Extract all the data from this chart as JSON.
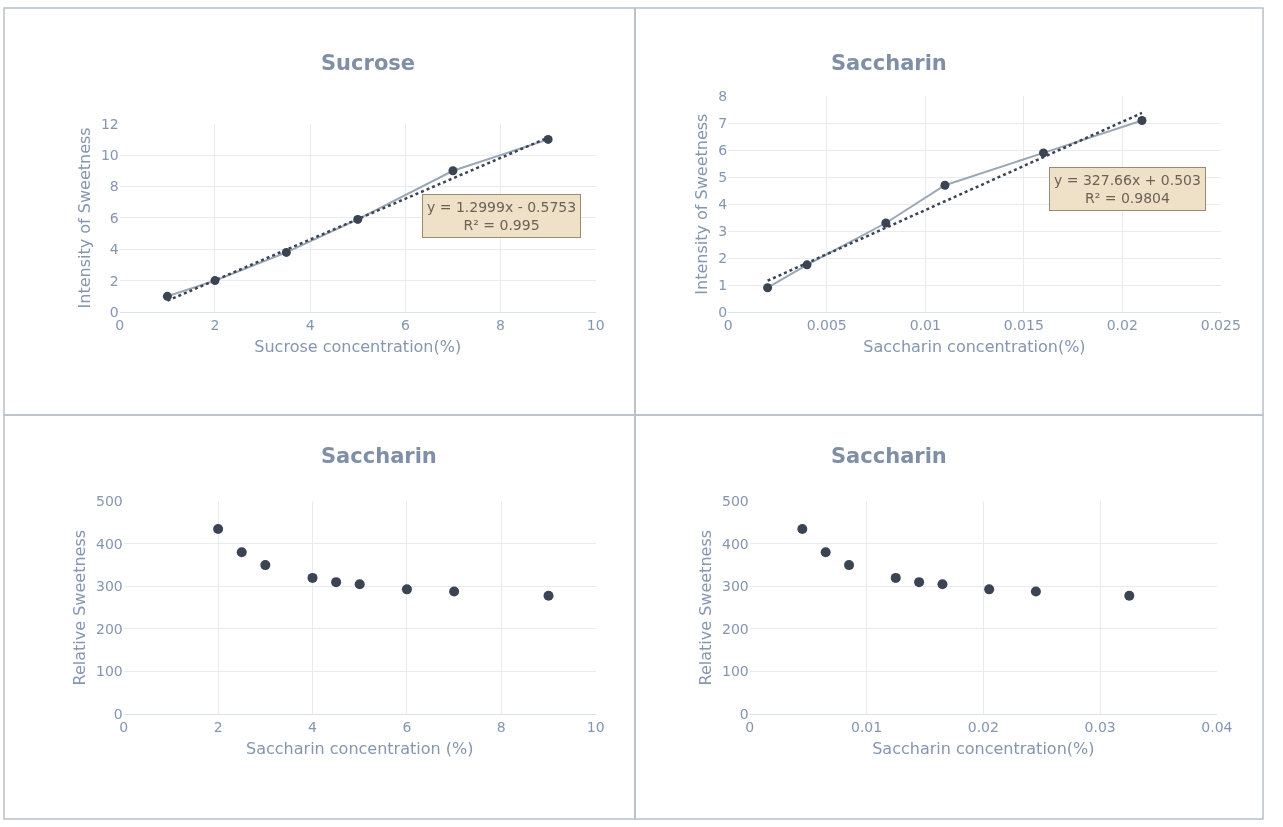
{
  "chart_data": [
    {
      "type": "line",
      "title": "Sucrose",
      "xlabel": "Sucrose concentration(%)",
      "ylabel": "Intensity of Sweetness",
      "xlim": [
        0,
        10
      ],
      "xticks": [
        0,
        2,
        4,
        6,
        8,
        10
      ],
      "ylim": [
        0,
        12
      ],
      "yticks": [
        0,
        2,
        4,
        6,
        8,
        10,
        12
      ],
      "grid": true,
      "series": [
        {
          "type": "line",
          "marker": "circle",
          "line_style": "solid",
          "color": "#9aa8b6",
          "x": [
            1,
            2,
            3.5,
            5,
            7,
            9
          ],
          "values": [
            1,
            2,
            3.8,
            5.9,
            9,
            11
          ]
        },
        {
          "type": "line",
          "marker": "none",
          "line_style": "dotted",
          "color": "#3b4453",
          "x": [
            1,
            9
          ],
          "values": [
            0.72,
            11.12
          ]
        }
      ],
      "annotations": [
        "y = 1.2999x - 0.5753\nR² = 0.995"
      ]
    },
    {
      "type": "line",
      "title": "Saccharin",
      "xlabel": "Saccharin concentration(%)",
      "ylabel": "Intensity of Sweetness",
      "xlim": [
        0,
        0.025
      ],
      "xticks": [
        0,
        0.005,
        0.01,
        0.015,
        0.02,
        0.025
      ],
      "ylim": [
        0,
        8
      ],
      "yticks": [
        0,
        1,
        2,
        3,
        4,
        5,
        6,
        7,
        8
      ],
      "grid": true,
      "series": [
        {
          "type": "line",
          "marker": "circle",
          "line_style": "solid",
          "color": "#9aa8b6",
          "x": [
            0.002,
            0.004,
            0.008,
            0.011,
            0.016,
            0.021
          ],
          "values": [
            0.9,
            1.75,
            3.3,
            4.7,
            5.9,
            7.1
          ]
        },
        {
          "type": "line",
          "marker": "none",
          "line_style": "dotted",
          "color": "#3b4453",
          "x": [
            0.002,
            0.021
          ],
          "values": [
            1.16,
            7.38
          ]
        }
      ],
      "annotations": [
        "y = 327.66x + 0.503\nR² = 0.9804"
      ]
    },
    {
      "type": "scatter",
      "title": "Saccharin",
      "xlabel": "Saccharin concentration (%)",
      "ylabel": "Relative Sweetness",
      "xlim": [
        0,
        10
      ],
      "xticks": [
        0,
        2,
        4,
        6,
        8,
        10
      ],
      "ylim": [
        0,
        500
      ],
      "yticks": [
        0,
        100,
        200,
        300,
        400,
        500
      ],
      "grid": true,
      "marker": "circle",
      "series": [
        {
          "color": "#3b4453",
          "x": [
            2,
            2.5,
            3,
            4,
            4.5,
            5,
            6,
            7,
            9
          ],
          "values": [
            435,
            380,
            350,
            320,
            310,
            305,
            293,
            288,
            278
          ]
        }
      ]
    },
    {
      "type": "scatter",
      "title": "Saccharin",
      "xlabel": "Saccharin concentration(%)",
      "ylabel": "Relative Sweetness",
      "xlim": [
        0,
        0.04
      ],
      "xticks": [
        0,
        0.01,
        0.02,
        0.03,
        0.04
      ],
      "ylim": [
        0,
        500
      ],
      "yticks": [
        0,
        100,
        200,
        300,
        400,
        500
      ],
      "grid": true,
      "marker": "circle",
      "series": [
        {
          "color": "#3b4453",
          "x": [
            0.0045,
            0.0065,
            0.0085,
            0.0125,
            0.0145,
            0.0165,
            0.0205,
            0.0245,
            0.0325
          ],
          "values": [
            435,
            380,
            350,
            320,
            310,
            305,
            293,
            288,
            278
          ]
        }
      ]
    }
  ]
}
